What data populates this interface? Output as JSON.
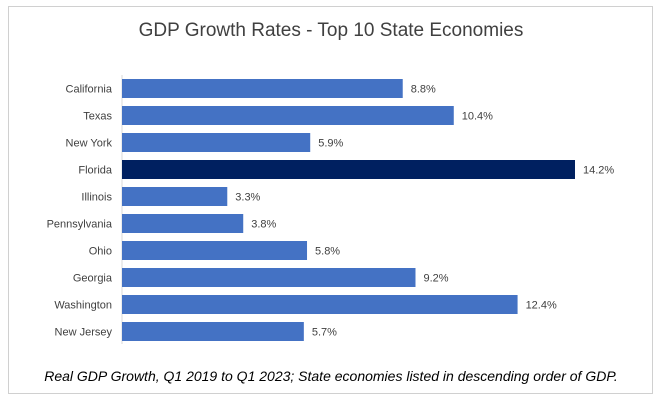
{
  "chart_data": {
    "type": "bar",
    "orientation": "horizontal",
    "title": "GDP Growth Rates - Top 10 State Economies",
    "caption": "Real GDP Growth, Q1 2019 to Q1 2023; State economies listed in descending order of GDP.",
    "categories": [
      "California",
      "Texas",
      "New York",
      "Florida",
      "Illinois",
      "Pennsylvania",
      "Ohio",
      "Georgia",
      "Washington",
      "New Jersey"
    ],
    "values": [
      8.8,
      10.4,
      5.9,
      14.2,
      3.3,
      3.8,
      5.8,
      9.2,
      12.4,
      5.7
    ],
    "value_labels": [
      "8.8%",
      "10.4%",
      "5.9%",
      "14.2%",
      "3.3%",
      "3.8%",
      "5.8%",
      "9.2%",
      "12.4%",
      "5.7%"
    ],
    "highlight": "Florida",
    "colors": {
      "bar": "#4472C4",
      "highlight": "#002060"
    },
    "xlim": [
      0,
      14.2
    ],
    "grid": false,
    "legend": "none"
  }
}
